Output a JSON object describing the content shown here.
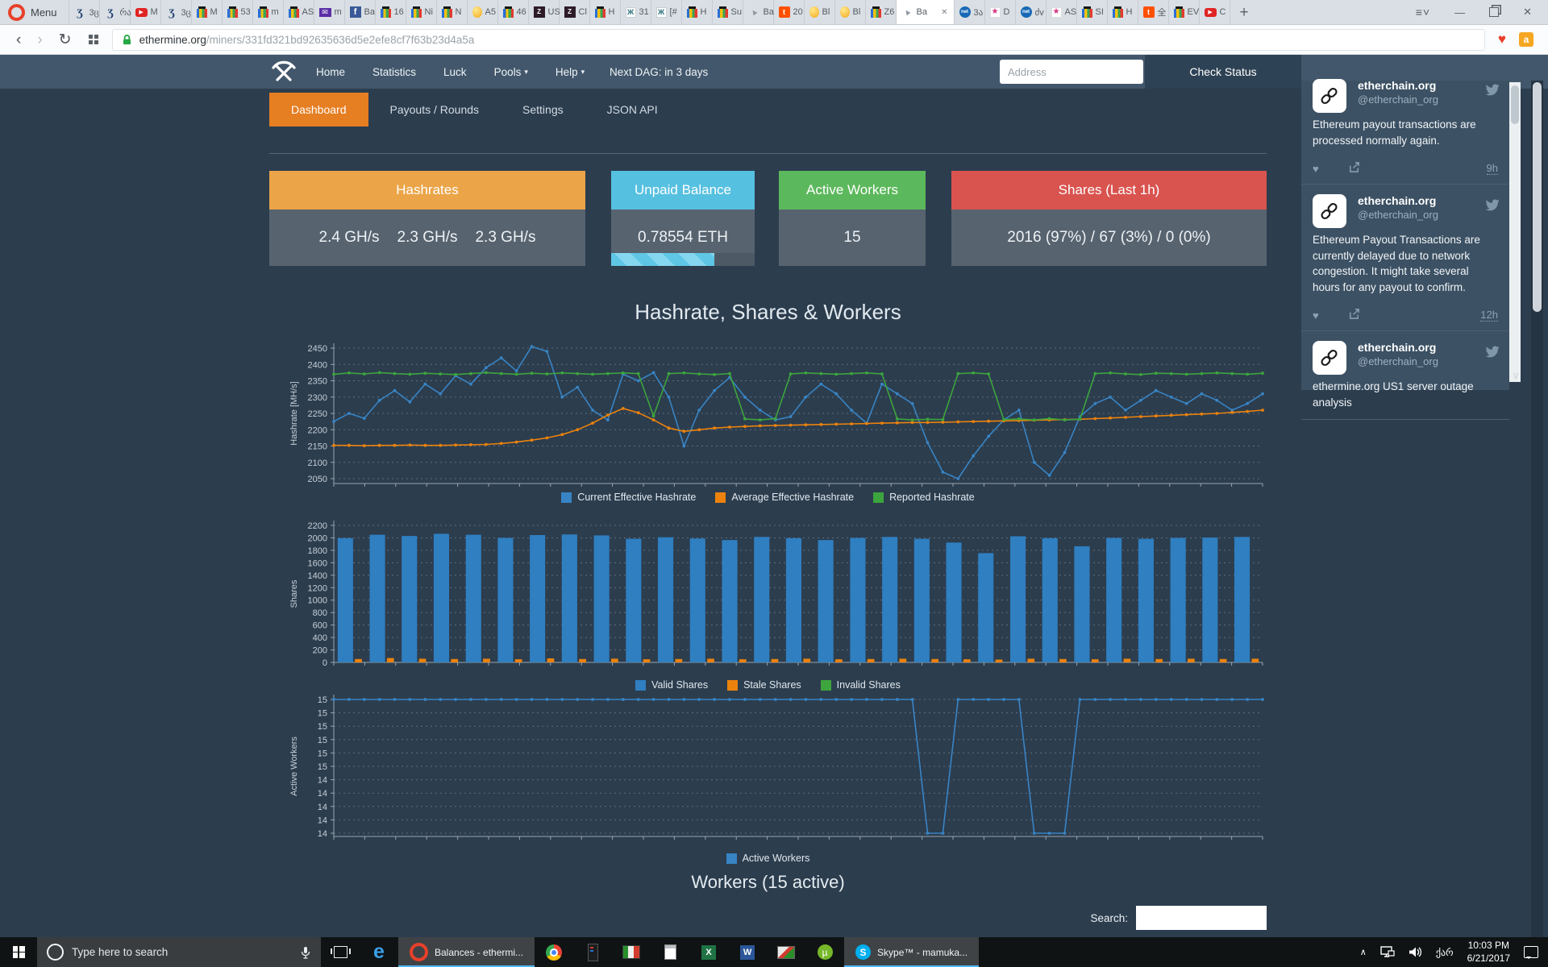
{
  "browser": {
    "menu_label": "Menu",
    "tabs": [
      {
        "icon": "scriptb",
        "label": "3ც"
      },
      {
        "icon": "scriptb",
        "label": "რა"
      },
      {
        "icon": "youtube",
        "label": "M"
      },
      {
        "icon": "scriptb",
        "label": "3ც"
      },
      {
        "icon": "bag",
        "label": "M"
      },
      {
        "icon": "bag",
        "label": "53"
      },
      {
        "icon": "bag",
        "label": "m"
      },
      {
        "icon": "bag",
        "label": "AS"
      },
      {
        "icon": "mail",
        "label": "m"
      },
      {
        "icon": "facebook",
        "label": "Ba"
      },
      {
        "icon": "bag",
        "label": "16"
      },
      {
        "icon": "bag",
        "label": "Ni"
      },
      {
        "icon": "bag",
        "label": "N"
      },
      {
        "icon": "egg",
        "label": "A5"
      },
      {
        "icon": "bag",
        "label": "46"
      },
      {
        "icon": "zoo",
        "label": "US"
      },
      {
        "icon": "zoo",
        "label": "Cl"
      },
      {
        "icon": "bag",
        "label": "H"
      },
      {
        "icon": "xx",
        "label": "31"
      },
      {
        "icon": "xx",
        "label": "[#"
      },
      {
        "icon": "bag",
        "label": "H"
      },
      {
        "icon": "bag",
        "label": "Su"
      },
      {
        "icon": "cursor",
        "label": "Ba"
      },
      {
        "icon": "taobao",
        "label": "20"
      },
      {
        "icon": "egg",
        "label": "Bl"
      },
      {
        "icon": "egg",
        "label": "Bl"
      },
      {
        "icon": "bag",
        "label": "Z6"
      },
      {
        "icon": "cursor",
        "label": "Ba",
        "active": true
      },
      {
        "icon": "net",
        "label": "3ა"
      },
      {
        "icon": "star",
        "label": "D"
      },
      {
        "icon": "net",
        "label": "ძv"
      },
      {
        "icon": "star",
        "label": "AS"
      },
      {
        "icon": "bag",
        "label": "SI"
      },
      {
        "icon": "bag",
        "label": "H"
      },
      {
        "icon": "taobao",
        "label": "全"
      },
      {
        "icon": "bag",
        "label": "EV"
      },
      {
        "icon": "youtube",
        "label": "C"
      }
    ],
    "address": {
      "domain": "ethermine.org",
      "path": "/miners/331fd321bd92635636d5e2efe8cf7f63b23d4a5a"
    }
  },
  "navbar": {
    "links": [
      {
        "label": "Home"
      },
      {
        "label": "Statistics"
      },
      {
        "label": "Luck"
      },
      {
        "label": "Pools",
        "caret": true
      },
      {
        "label": "Help",
        "caret": true
      }
    ],
    "dag_label": "Next DAG: in 3 days",
    "address_placeholder": "Address",
    "check_status_label": "Check Status"
  },
  "subtabs": [
    {
      "label": "Dashboard",
      "active": true
    },
    {
      "label": "Payouts / Rounds"
    },
    {
      "label": "Settings"
    },
    {
      "label": "JSON API"
    }
  ],
  "cards": [
    {
      "title": "Hashrates",
      "color": "#eba447",
      "values": [
        "2.4 GH/s",
        "2.3 GH/s",
        "2.3 GH/s"
      ]
    },
    {
      "title": "Unpaid Balance",
      "color": "#56c0e0",
      "values": [
        "0.78554 ETH"
      ],
      "progress": 0.72
    },
    {
      "title": "Active Workers",
      "color": "#5cb85c",
      "values": [
        "15"
      ]
    },
    {
      "title": "Shares (Last 1h)",
      "color": "#d9534f",
      "values": [
        "2016 (97%) / 67 (3%) / 0 (0%)"
      ]
    }
  ],
  "section_title": "Hashrate, Shares & Workers",
  "workers_title": "Workers (15 active)",
  "search_label": "Search:",
  "chart_data": [
    {
      "type": "line",
      "title": "Hashrate, Shares & Workers",
      "ylabel": "Hashrate [MH/s]",
      "yticks": [
        "2450",
        "2400",
        "2350",
        "2300",
        "2250",
        "2200",
        "2150",
        "2100",
        "2050"
      ],
      "ylim": [
        2050,
        2450
      ],
      "grid": true,
      "legend_position": "bottom",
      "series": [
        {
          "name": "Current Effective Hashrate",
          "color": "#3884c4",
          "values": [
            2225,
            2250,
            2235,
            2290,
            2320,
            2285,
            2340,
            2310,
            2365,
            2340,
            2390,
            2420,
            2380,
            2455,
            2440,
            2300,
            2330,
            2260,
            2230,
            2370,
            2350,
            2375,
            2300,
            2150,
            2260,
            2320,
            2360,
            2300,
            2260,
            2230,
            2240,
            2300,
            2340,
            2310,
            2260,
            2220,
            2340,
            2310,
            2280,
            2160,
            2070,
            2050,
            2120,
            2180,
            2230,
            2260,
            2100,
            2060,
            2130,
            2240,
            2280,
            2300,
            2260,
            2290,
            2320,
            2300,
            2280,
            2310,
            2290,
            2260,
            2280,
            2310
          ]
        },
        {
          "name": "Average Effective Hashrate",
          "color": "#ec820c",
          "values": [
            2152,
            2152,
            2151,
            2152,
            2152,
            2153,
            2152,
            2152,
            2153,
            2154,
            2155,
            2158,
            2162,
            2168,
            2175,
            2185,
            2200,
            2220,
            2245,
            2265,
            2252,
            2230,
            2205,
            2195,
            2200,
            2205,
            2208,
            2210,
            2212,
            2213,
            2214,
            2215,
            2216,
            2217,
            2218,
            2219,
            2220,
            2221,
            2222,
            2222,
            2223,
            2224,
            2225,
            2226,
            2227,
            2228,
            2229,
            2230,
            2231,
            2232,
            2234,
            2236,
            2238,
            2240,
            2242,
            2244,
            2246,
            2248,
            2250,
            2253,
            2256,
            2260
          ]
        },
        {
          "name": "Reported Hashrate",
          "color": "#3da53d",
          "values": [
            2370,
            2374,
            2371,
            2375,
            2372,
            2370,
            2373,
            2371,
            2369,
            2372,
            2375,
            2372,
            2370,
            2373,
            2371,
            2374,
            2372,
            2370,
            2372,
            2374,
            2372,
            2242,
            2372,
            2374,
            2371,
            2369,
            2372,
            2233,
            2230,
            2234,
            2371,
            2374,
            2372,
            2370,
            2372,
            2374,
            2371,
            2233,
            2230,
            2232,
            2231,
            2372,
            2374,
            2371,
            2231,
            2233,
            2230,
            2234,
            2230,
            2232,
            2372,
            2374,
            2371,
            2369,
            2373,
            2372,
            2370,
            2372,
            2374,
            2372,
            2370,
            2373
          ]
        }
      ]
    },
    {
      "type": "bar",
      "ylabel": "Shares",
      "yticks": [
        "2200",
        "2000",
        "1800",
        "1600",
        "1400",
        "1200",
        "1000",
        "800",
        "600",
        "400",
        "200",
        "0"
      ],
      "ylim": [
        0,
        2200
      ],
      "grid": true,
      "legend_position": "bottom",
      "series": [
        {
          "name": "Valid Shares",
          "color": "#2f7fc1",
          "values": [
            1995,
            2050,
            2030,
            2065,
            2050,
            2000,
            2045,
            2055,
            2040,
            1985,
            2010,
            1990,
            1965,
            2015,
            1995,
            1965,
            2000,
            2015,
            1985,
            1925,
            1755,
            2025,
            1995,
            1865,
            2000,
            1985,
            2000,
            2005,
            2015
          ]
        },
        {
          "name": "Stale Shares",
          "color": "#ec820c",
          "values": [
            55,
            70,
            60,
            55,
            60,
            50,
            65,
            55,
            60,
            50,
            55,
            60,
            50,
            55,
            60,
            50,
            55,
            60,
            55,
            50,
            45,
            60,
            55,
            50,
            60,
            55,
            60,
            55,
            60
          ]
        },
        {
          "name": "Invalid Shares",
          "color": "#3da53d",
          "values": [
            0,
            0,
            0,
            0,
            0,
            0,
            0,
            0,
            0,
            0,
            0,
            0,
            0,
            0,
            0,
            0,
            0,
            0,
            0,
            0,
            0,
            0,
            0,
            0,
            0,
            0,
            0,
            0,
            0
          ]
        }
      ]
    },
    {
      "type": "line",
      "ylabel": "Active Workers",
      "yticks": [
        "15",
        "15",
        "15",
        "15",
        "15",
        "15",
        "14",
        "14",
        "14",
        "14",
        "14"
      ],
      "ylim": [
        14,
        15
      ],
      "grid": true,
      "legend_position": "bottom",
      "series": [
        {
          "name": "Active Workers",
          "color": "#3884c4",
          "values": [
            15,
            15,
            15,
            15,
            15,
            15,
            15,
            15,
            15,
            15,
            15,
            15,
            15,
            15,
            15,
            15,
            15,
            15,
            15,
            15,
            15,
            15,
            15,
            15,
            15,
            15,
            15,
            15,
            15,
            15,
            15,
            15,
            15,
            15,
            15,
            15,
            15,
            15,
            15,
            14,
            14,
            15,
            15,
            15,
            15,
            15,
            14,
            14,
            14,
            15,
            15,
            15,
            15,
            15,
            15,
            15,
            15,
            15,
            15,
            15,
            15,
            15
          ]
        }
      ]
    }
  ],
  "sidebar": {
    "tweets": [
      {
        "name": "etherchain.org",
        "handle": "@etherchain_org",
        "text": "Ethereum payout transactions are processed normally again.",
        "time": "9h",
        "clipped": "top"
      },
      {
        "name": "etherchain.org",
        "handle": "@etherchain_org",
        "text": "Ethereum Payout Transactions are currently delayed due to network congestion. It might take several hours for any payout to confirm.",
        "time": "12h",
        "clipped": "none"
      },
      {
        "name": "etherchain.org",
        "handle": "@etherchain_org",
        "text": "ethermine.org US1 server outage analysis",
        "time": "",
        "clipped": "bottom"
      }
    ]
  },
  "taskbar": {
    "search_placeholder": "Type here to search",
    "apps": [
      {
        "icon": "edge"
      },
      {
        "icon": "opera",
        "label": "Balances - ethermi...",
        "active": true
      },
      {
        "icon": "chrome"
      },
      {
        "icon": "tower"
      },
      {
        "icon": "media"
      },
      {
        "icon": "calculator"
      },
      {
        "icon": "excel"
      },
      {
        "icon": "word"
      },
      {
        "icon": "gpu"
      },
      {
        "icon": "utorrent"
      },
      {
        "icon": "skype",
        "label": "Skype™ - mamuka...",
        "active": true
      }
    ],
    "tray": {
      "lang": "ქარ",
      "time": "10:03 PM",
      "date": "6/21/2017"
    }
  }
}
